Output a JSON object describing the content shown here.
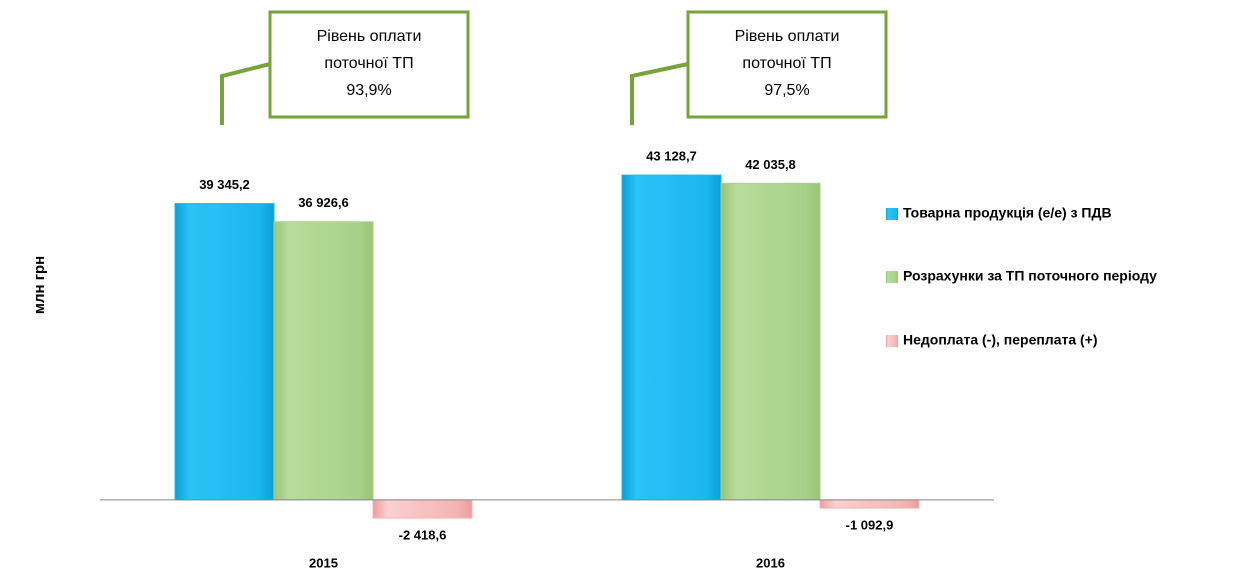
{
  "chart_data": {
    "type": "bar",
    "y_label": "млн грн",
    "categories": [
      "2015",
      "2016"
    ],
    "series": [
      {
        "name": "Товарна продукція (е/е) з ПДВ",
        "color": "#1cb6f0",
        "values": [
          39345.2,
          43128.7
        ],
        "value_labels": [
          "39 345,2",
          "43 128,7"
        ]
      },
      {
        "name": "Розрахунки за ТП поточного періоду",
        "color": "#a8d08a",
        "values": [
          36926.6,
          42035.8
        ],
        "value_labels": [
          "36 926,6",
          "42 035,8"
        ]
      },
      {
        "name": "Недоплата (-), переплата (+)",
        "color": "#f4b4b4",
        "values": [
          -2418.6,
          -1092.9
        ],
        "value_labels": [
          "-2 418,6",
          "-1 092,9"
        ]
      }
    ],
    "annotations": [
      {
        "lines": [
          "Рівень оплати",
          "поточної ТП",
          "93,9%"
        ]
      },
      {
        "lines": [
          "Рівень оплати",
          "поточної ТП",
          "97,5%"
        ]
      }
    ],
    "ylim": [
      -4000,
      45000
    ],
    "legend": "right"
  }
}
